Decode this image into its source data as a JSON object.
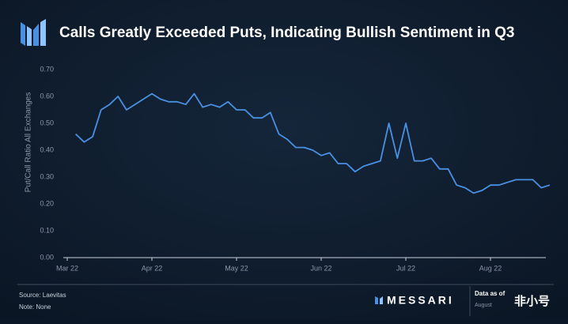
{
  "chart_data": {
    "type": "line",
    "title": "Calls Greatly Exceeded Puts, Indicating Bullish Sentiment in Q3",
    "y_label": "Put/Call Ratio All Exchanges",
    "categories": [
      "Mar 22",
      null,
      null,
      null,
      null,
      null,
      null,
      null,
      null,
      null,
      "Apr 22",
      null,
      null,
      null,
      null,
      null,
      null,
      null,
      null,
      null,
      "May 22",
      null,
      null,
      null,
      null,
      null,
      null,
      null,
      null,
      null,
      "Jun 22",
      null,
      null,
      null,
      null,
      null,
      null,
      null,
      null,
      null,
      "Jul 22",
      null,
      null,
      null,
      null,
      null,
      null,
      null,
      null,
      null,
      "Aug 22",
      null,
      null,
      null,
      null,
      null,
      null,
      null
    ],
    "series": [
      {
        "name": "Put/Call Ratio",
        "color": "#4a90e2",
        "values": [
          null,
          0.46,
          0.43,
          0.45,
          0.55,
          0.57,
          0.6,
          0.55,
          0.57,
          0.59,
          0.61,
          0.59,
          0.58,
          0.58,
          0.57,
          0.61,
          0.56,
          0.57,
          0.56,
          0.58,
          0.55,
          0.55,
          0.52,
          0.52,
          0.54,
          0.46,
          0.44,
          0.41,
          0.41,
          0.4,
          0.38,
          0.39,
          0.35,
          0.35,
          0.32,
          0.34,
          0.35,
          0.36,
          0.5,
          0.37,
          0.5,
          0.36,
          0.36,
          0.37,
          0.33,
          0.33,
          0.27,
          0.26,
          0.24,
          0.25,
          0.27,
          0.27,
          0.28,
          0.29,
          0.29,
          0.29,
          0.26,
          0.27
        ]
      }
    ],
    "ylim": [
      0,
      0.7
    ],
    "yticks": [
      {
        "value": 0,
        "label": "0.00"
      },
      {
        "value": 0.1,
        "label": "0.10"
      },
      {
        "value": 0.2,
        "label": "0.20"
      },
      {
        "value": 0.3,
        "label": "0.30"
      },
      {
        "value": 0.4,
        "label": "0.40"
      },
      {
        "value": 0.5,
        "label": "0.50"
      },
      {
        "value": 0.6,
        "label": "0.60"
      },
      {
        "value": 0.7,
        "label": "0.70"
      }
    ],
    "grid": false,
    "footer": {
      "source": "Source: Laevitas",
      "note": "Note: None",
      "brand": "MESSARI",
      "data_as_of": "Data as of",
      "date": "August",
      "watermark": "非小号"
    }
  }
}
